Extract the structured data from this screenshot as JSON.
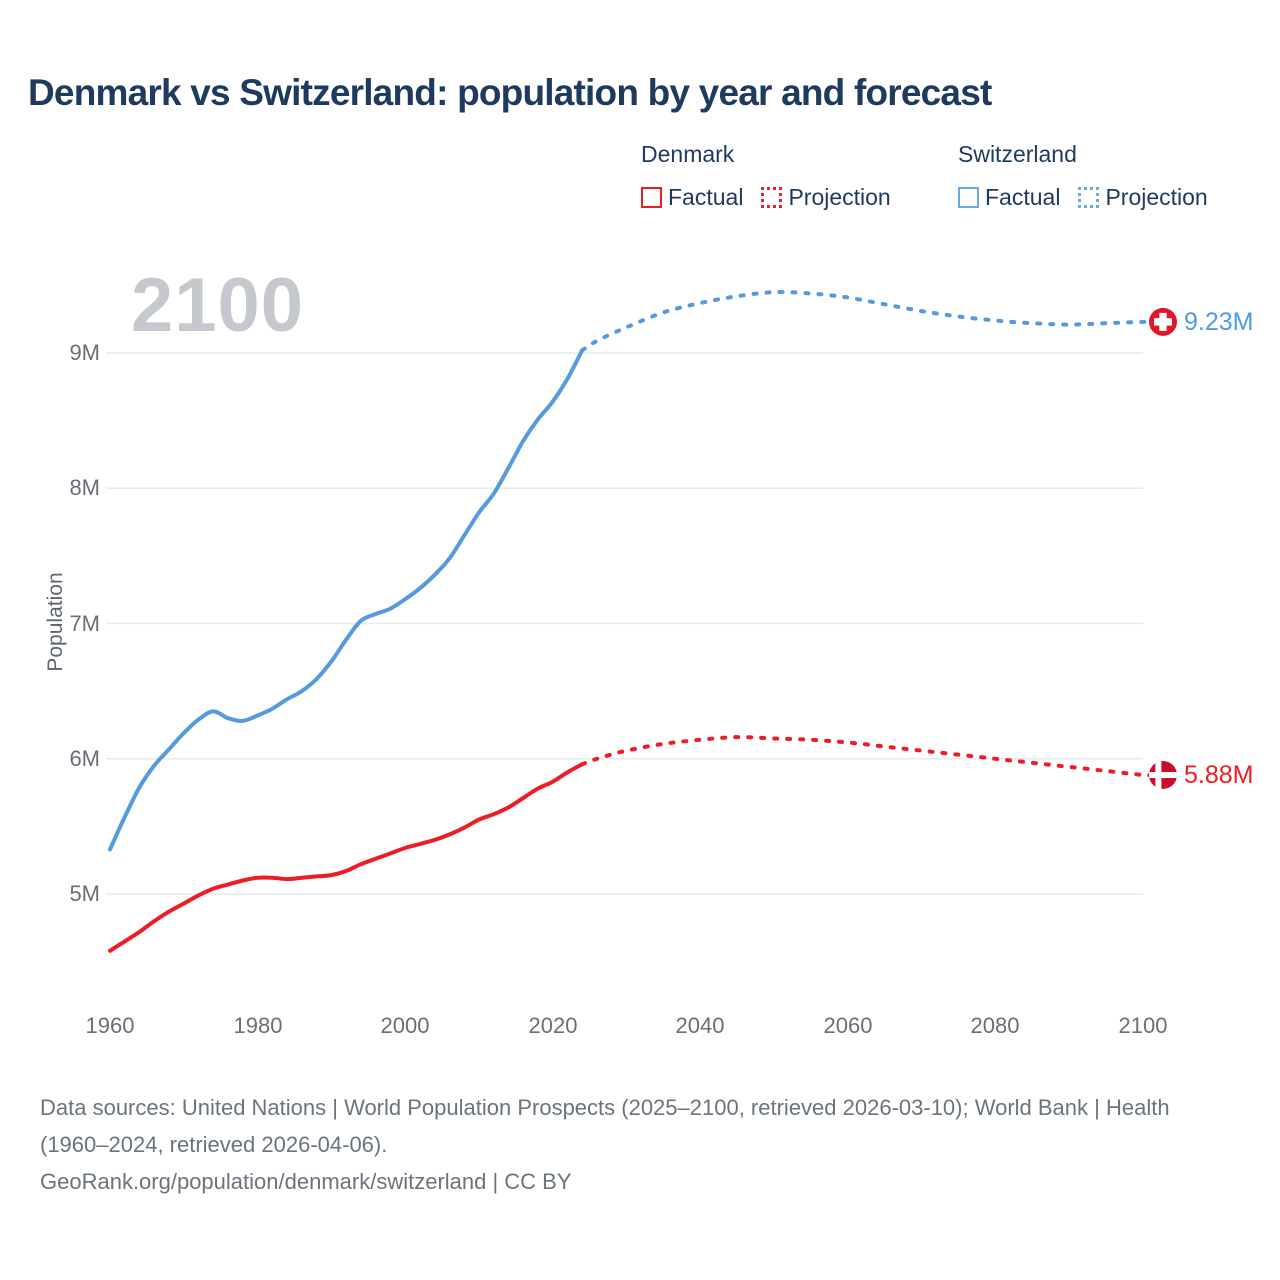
{
  "title": "Denmark vs Switzerland: population by year and forecast",
  "watermark": "2100",
  "legend": {
    "groups": [
      {
        "name": "Denmark",
        "color": "#ee1c25",
        "items": [
          {
            "label": "Factual",
            "style": "solid"
          },
          {
            "label": "Projection",
            "style": "dotted"
          }
        ]
      },
      {
        "name": "Switzerland",
        "color": "#6fa9e2",
        "items": [
          {
            "label": "Factual",
            "style": "solid"
          },
          {
            "label": "Projection",
            "style": "dotted"
          }
        ]
      }
    ]
  },
  "chart_data": {
    "type": "line",
    "title": "Denmark vs Switzerland: population by year and forecast",
    "xlabel": "",
    "ylabel": "Population",
    "x_tick_labels": [
      "1960",
      "1980",
      "2000",
      "2020",
      "2040",
      "2060",
      "2080",
      "2100"
    ],
    "y_tick_labels": [
      "9M",
      "8M",
      "7M",
      "6M",
      "5M"
    ],
    "y_tick_values": [
      9,
      8,
      7,
      6,
      5
    ],
    "xlim": [
      1960,
      2100
    ],
    "ylim": [
      4.35,
      9.75
    ],
    "grid": "horizontal-only",
    "legend_position": "top-right",
    "series": [
      {
        "name": "Switzerland Factual",
        "color": "#559add",
        "style": "solid",
        "points": [
          [
            1960,
            5.33
          ],
          [
            1962,
            5.57
          ],
          [
            1964,
            5.79
          ],
          [
            1966,
            5.95
          ],
          [
            1968,
            6.07
          ],
          [
            1970,
            6.19
          ],
          [
            1972,
            6.29
          ],
          [
            1974,
            6.35
          ],
          [
            1976,
            6.3
          ],
          [
            1978,
            6.28
          ],
          [
            1980,
            6.32
          ],
          [
            1982,
            6.37
          ],
          [
            1984,
            6.44
          ],
          [
            1986,
            6.5
          ],
          [
            1988,
            6.59
          ],
          [
            1990,
            6.72
          ],
          [
            1992,
            6.88
          ],
          [
            1994,
            7.02
          ],
          [
            1996,
            7.07
          ],
          [
            1998,
            7.11
          ],
          [
            2000,
            7.18
          ],
          [
            2002,
            7.26
          ],
          [
            2004,
            7.36
          ],
          [
            2006,
            7.48
          ],
          [
            2008,
            7.65
          ],
          [
            2010,
            7.82
          ],
          [
            2012,
            7.96
          ],
          [
            2014,
            8.15
          ],
          [
            2016,
            8.35
          ],
          [
            2018,
            8.51
          ],
          [
            2020,
            8.64
          ],
          [
            2022,
            8.81
          ],
          [
            2024,
            9.02
          ]
        ]
      },
      {
        "name": "Switzerland Projection",
        "color": "#559add",
        "style": "dashed",
        "points": [
          [
            2024,
            9.02
          ],
          [
            2026,
            9.09
          ],
          [
            2030,
            9.19
          ],
          [
            2035,
            9.3
          ],
          [
            2040,
            9.37
          ],
          [
            2045,
            9.42
          ],
          [
            2050,
            9.45
          ],
          [
            2055,
            9.44
          ],
          [
            2060,
            9.41
          ],
          [
            2065,
            9.36
          ],
          [
            2070,
            9.31
          ],
          [
            2075,
            9.27
          ],
          [
            2080,
            9.24
          ],
          [
            2085,
            9.22
          ],
          [
            2090,
            9.21
          ],
          [
            2095,
            9.22
          ],
          [
            2100,
            9.23
          ]
        ]
      },
      {
        "name": "Denmark Factual",
        "color": "#ee1c25",
        "style": "solid",
        "points": [
          [
            1960,
            4.58
          ],
          [
            1962,
            4.65
          ],
          [
            1964,
            4.72
          ],
          [
            1966,
            4.8
          ],
          [
            1968,
            4.87
          ],
          [
            1970,
            4.93
          ],
          [
            1972,
            4.99
          ],
          [
            1974,
            5.04
          ],
          [
            1976,
            5.07
          ],
          [
            1978,
            5.1
          ],
          [
            1980,
            5.12
          ],
          [
            1982,
            5.12
          ],
          [
            1984,
            5.11
          ],
          [
            1986,
            5.12
          ],
          [
            1988,
            5.13
          ],
          [
            1990,
            5.14
          ],
          [
            1992,
            5.17
          ],
          [
            1994,
            5.22
          ],
          [
            1996,
            5.26
          ],
          [
            1998,
            5.3
          ],
          [
            2000,
            5.34
          ],
          [
            2002,
            5.37
          ],
          [
            2004,
            5.4
          ],
          [
            2006,
            5.44
          ],
          [
            2008,
            5.49
          ],
          [
            2010,
            5.55
          ],
          [
            2012,
            5.59
          ],
          [
            2014,
            5.64
          ],
          [
            2016,
            5.71
          ],
          [
            2018,
            5.78
          ],
          [
            2020,
            5.83
          ],
          [
            2022,
            5.9
          ],
          [
            2024,
            5.96
          ]
        ]
      },
      {
        "name": "Denmark Projection",
        "color": "#ee1c25",
        "style": "dashed",
        "points": [
          [
            2024,
            5.96
          ],
          [
            2026,
            6.0
          ],
          [
            2030,
            6.06
          ],
          [
            2035,
            6.11
          ],
          [
            2040,
            6.14
          ],
          [
            2045,
            6.16
          ],
          [
            2050,
            6.15
          ],
          [
            2055,
            6.14
          ],
          [
            2060,
            6.12
          ],
          [
            2065,
            6.09
          ],
          [
            2070,
            6.06
          ],
          [
            2075,
            6.03
          ],
          [
            2080,
            6.0
          ],
          [
            2085,
            5.97
          ],
          [
            2090,
            5.94
          ],
          [
            2095,
            5.91
          ],
          [
            2100,
            5.88
          ]
        ]
      }
    ],
    "end_labels": [
      {
        "series": "Switzerland",
        "text": "9.23M",
        "value": 9.23,
        "color": "#4f9be2",
        "flag": "switzerland"
      },
      {
        "series": "Denmark",
        "text": "5.88M",
        "value": 5.88,
        "color": "#ee1c25",
        "flag": "denmark"
      }
    ],
    "flag_colors": {
      "switzerland": "#e11428",
      "denmark": "#cc0c2c"
    },
    "gridline_color": "#e8eaec"
  },
  "footer": {
    "sources": "Data sources: United Nations | World Population Prospects (2025–2100, retrieved 2026-03-10); World Bank | Health (1960–2024, retrieved 2026-04-06).",
    "attribution": "GeoRank.org/population/denmark/switzerland | CC BY"
  }
}
